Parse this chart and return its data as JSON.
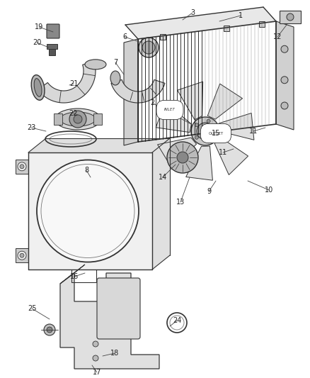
{
  "bg_color": "#ffffff",
  "fig_width": 4.38,
  "fig_height": 5.33,
  "dpi": 100,
  "line_color": "#333333",
  "label_color": "#222222",
  "label_fontsize": 7.0
}
